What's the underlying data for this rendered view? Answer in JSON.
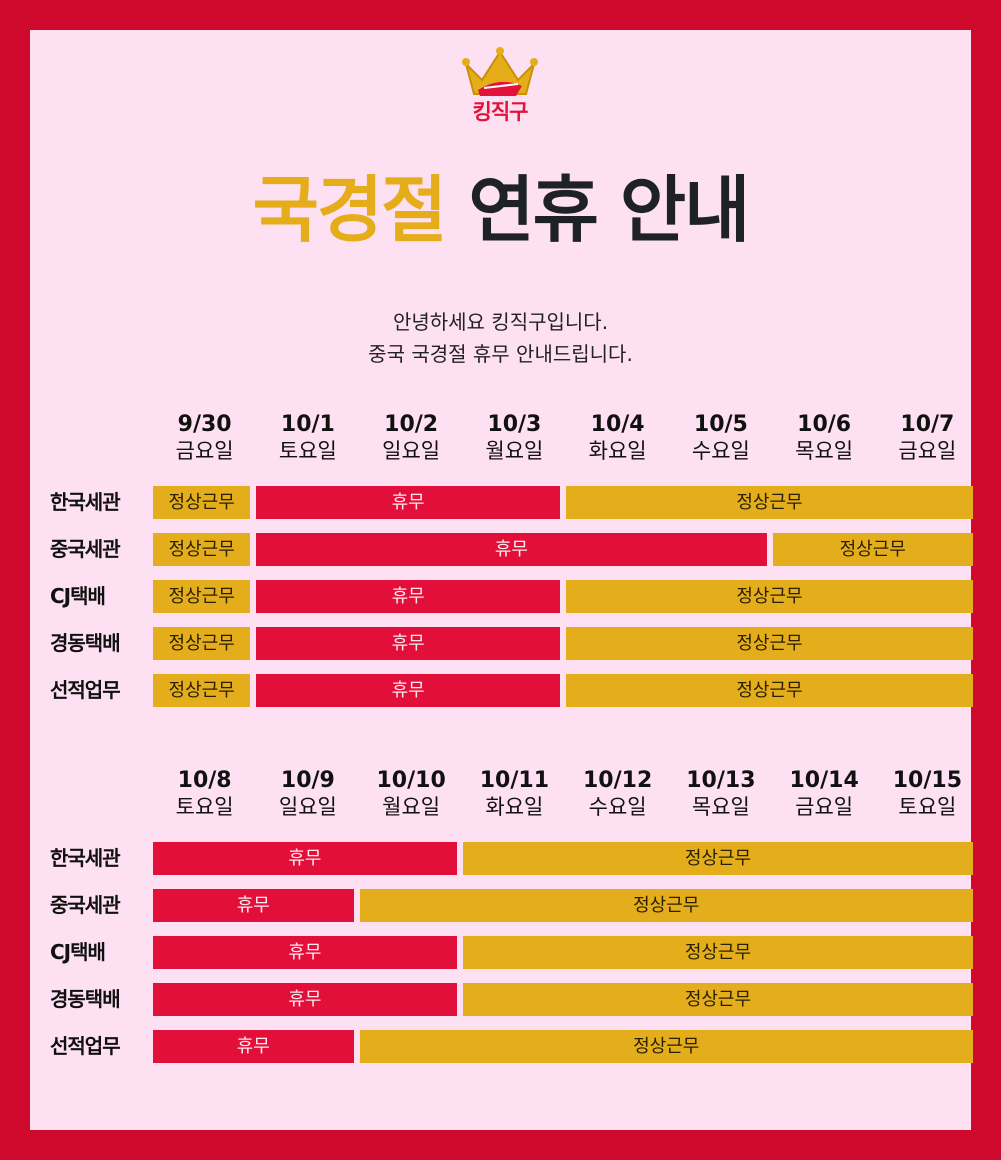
{
  "logo": {
    "text": "킹직구",
    "icon": "crown-icon"
  },
  "title": {
    "highlight": "국경절",
    "rest": "연휴 안내"
  },
  "intro": {
    "line1": "안녕하세요 킹직구입니다.",
    "line2": "중국 국경절 휴무 안내드립니다."
  },
  "colors": {
    "border": "#cf0a2c",
    "background": "#fde0f2",
    "holiday": "#e10f3a",
    "work": "#e4ad1b",
    "title_highlight": "#e6ad1a"
  },
  "schedule": [
    {
      "days": [
        {
          "date": "9/30",
          "weekday": "금요일"
        },
        {
          "date": "10/1",
          "weekday": "토요일"
        },
        {
          "date": "10/2",
          "weekday": "일요일"
        },
        {
          "date": "10/3",
          "weekday": "월요일"
        },
        {
          "date": "10/4",
          "weekday": "화요일"
        },
        {
          "date": "10/5",
          "weekday": "수요일"
        },
        {
          "date": "10/6",
          "weekday": "목요일"
        },
        {
          "date": "10/7",
          "weekday": "금요일"
        }
      ],
      "rows": [
        {
          "label": "한국세관",
          "segments": [
            {
              "status": "정상근무",
              "span": 1
            },
            {
              "status": "휴무",
              "span": 3
            },
            {
              "status": "정상근무",
              "span": 4
            }
          ]
        },
        {
          "label": "중국세관",
          "segments": [
            {
              "status": "정상근무",
              "span": 1
            },
            {
              "status": "휴무",
              "span": 5
            },
            {
              "status": "정상근무",
              "span": 2
            }
          ]
        },
        {
          "label": "CJ택배",
          "segments": [
            {
              "status": "정상근무",
              "span": 1
            },
            {
              "status": "휴무",
              "span": 3
            },
            {
              "status": "정상근무",
              "span": 4
            }
          ]
        },
        {
          "label": "경동택배",
          "segments": [
            {
              "status": "정상근무",
              "span": 1
            },
            {
              "status": "휴무",
              "span": 3
            },
            {
              "status": "정상근무",
              "span": 4
            }
          ]
        },
        {
          "label": "선적업무",
          "segments": [
            {
              "status": "정상근무",
              "span": 1
            },
            {
              "status": "휴무",
              "span": 3
            },
            {
              "status": "정상근무",
              "span": 4
            }
          ]
        }
      ]
    },
    {
      "days": [
        {
          "date": "10/8",
          "weekday": "토요일"
        },
        {
          "date": "10/9",
          "weekday": "일요일"
        },
        {
          "date": "10/10",
          "weekday": "월요일"
        },
        {
          "date": "10/11",
          "weekday": "화요일"
        },
        {
          "date": "10/12",
          "weekday": "수요일"
        },
        {
          "date": "10/13",
          "weekday": "목요일"
        },
        {
          "date": "10/14",
          "weekday": "금요일"
        },
        {
          "date": "10/15",
          "weekday": "토요일"
        }
      ],
      "rows": [
        {
          "label": "한국세관",
          "segments": [
            {
              "status": "휴무",
              "span": 3
            },
            {
              "status": "정상근무",
              "span": 5
            }
          ]
        },
        {
          "label": "중국세관",
          "segments": [
            {
              "status": "휴무",
              "span": 2
            },
            {
              "status": "정상근무",
              "span": 6
            }
          ]
        },
        {
          "label": "CJ택배",
          "segments": [
            {
              "status": "휴무",
              "span": 3
            },
            {
              "status": "정상근무",
              "span": 5
            }
          ]
        },
        {
          "label": "경동택배",
          "segments": [
            {
              "status": "휴무",
              "span": 3
            },
            {
              "status": "정상근무",
              "span": 5
            }
          ]
        },
        {
          "label": "선적업무",
          "segments": [
            {
              "status": "휴무",
              "span": 2
            },
            {
              "status": "정상근무",
              "span": 6
            }
          ]
        }
      ]
    }
  ]
}
